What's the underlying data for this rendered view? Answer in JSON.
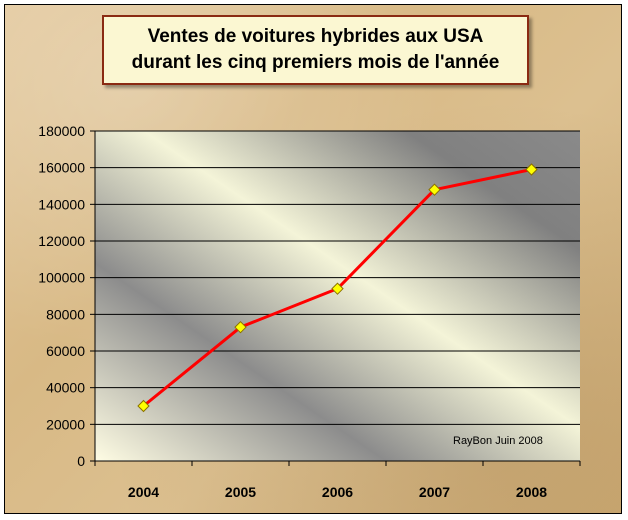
{
  "chart_data": {
    "type": "line",
    "title_line1": "Ventes de voitures hybrides aux USA",
    "title_line2": "durant les cinq premiers mois de l'année",
    "categories": [
      "2004",
      "2005",
      "2006",
      "2007",
      "2008"
    ],
    "series": [
      {
        "values": [
          30000,
          73000,
          94000,
          148000,
          159000
        ],
        "color": "#ff0000",
        "marker_color": "#ffff00"
      }
    ],
    "ylim": [
      0,
      180000
    ],
    "yticks": [
      0,
      20000,
      40000,
      60000,
      80000,
      100000,
      120000,
      140000,
      160000,
      180000
    ],
    "grid": true,
    "annotation": "RayBon Juin 2008"
  }
}
